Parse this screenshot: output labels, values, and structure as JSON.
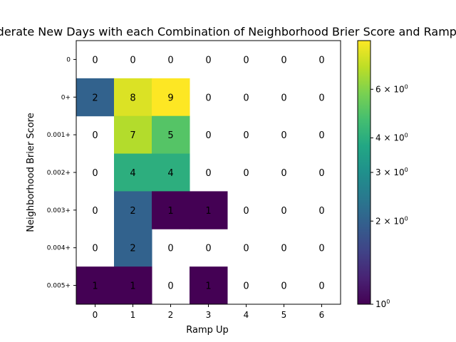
{
  "chart_data": {
    "type": "heatmap",
    "title": "Moderate New Days with each Combination of Neighborhood Brier Score and Ramp Up",
    "xlabel": "Ramp Up",
    "ylabel": "Neighborhood Brier Score",
    "x_categories": [
      "0",
      "1",
      "2",
      "3",
      "4",
      "5",
      "6"
    ],
    "y_categories": [
      "0",
      "0+",
      "0.001+",
      "0.002+",
      "0.003+",
      "0.004+",
      "0.005+"
    ],
    "values": [
      [
        0,
        0,
        0,
        0,
        0,
        0,
        0
      ],
      [
        2,
        8,
        9,
        0,
        0,
        0,
        0
      ],
      [
        0,
        7,
        5,
        0,
        0,
        0,
        0
      ],
      [
        0,
        4,
        4,
        0,
        0,
        0,
        0
      ],
      [
        0,
        2,
        1,
        1,
        0,
        0,
        0
      ],
      [
        0,
        2,
        0,
        0,
        0,
        0,
        0
      ],
      [
        1,
        1,
        0,
        1,
        0,
        0,
        0
      ]
    ],
    "color_scale": "log",
    "colormap": "viridis",
    "zero_cells": "white",
    "colorbar": {
      "range": [
        1,
        9
      ],
      "tick_labels": [
        {
          "value": 1,
          "base": "10",
          "exp": "0"
        },
        {
          "value": 2,
          "base": "2 × 10",
          "exp": "0"
        },
        {
          "value": 3,
          "base": "3 × 10",
          "exp": "0"
        },
        {
          "value": 4,
          "base": "4 × 10",
          "exp": "0"
        },
        {
          "value": 6,
          "base": "6 × 10",
          "exp": "0"
        }
      ]
    }
  }
}
